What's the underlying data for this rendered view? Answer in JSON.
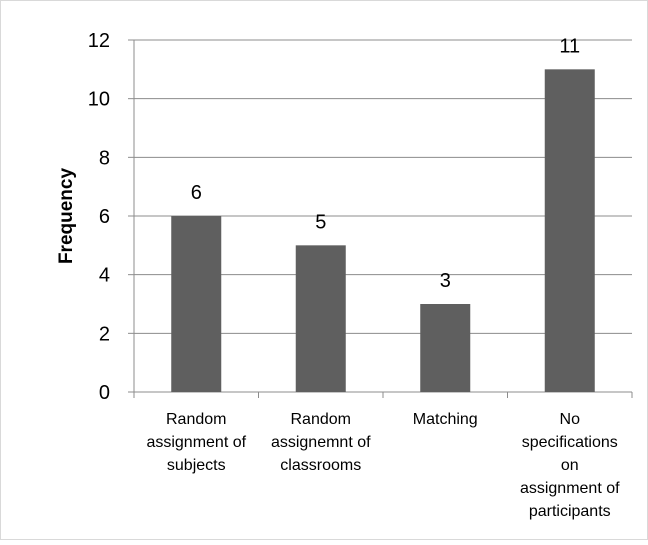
{
  "chart_data": {
    "type": "bar",
    "title": "",
    "xlabel": "",
    "ylabel": "Frequency",
    "ylim": [
      0,
      12
    ],
    "yticks": [
      0,
      2,
      4,
      6,
      8,
      10,
      12
    ],
    "grid": true,
    "categories": [
      "Random assignment of subjects",
      "Random assignemnt of classrooms",
      "Matching",
      "No specifications on assignment of participants"
    ],
    "category_lines": [
      [
        "Random",
        "assignment of",
        "subjects"
      ],
      [
        "Random",
        "assignemnt of",
        "classrooms"
      ],
      [
        "Matching"
      ],
      [
        "No",
        "specifications",
        "on",
        "assignment of",
        "participants"
      ]
    ],
    "values": [
      6,
      5,
      3,
      11
    ],
    "data_labels": [
      "6",
      "5",
      "3",
      "11"
    ],
    "bar_color": "#5f5f5f"
  }
}
